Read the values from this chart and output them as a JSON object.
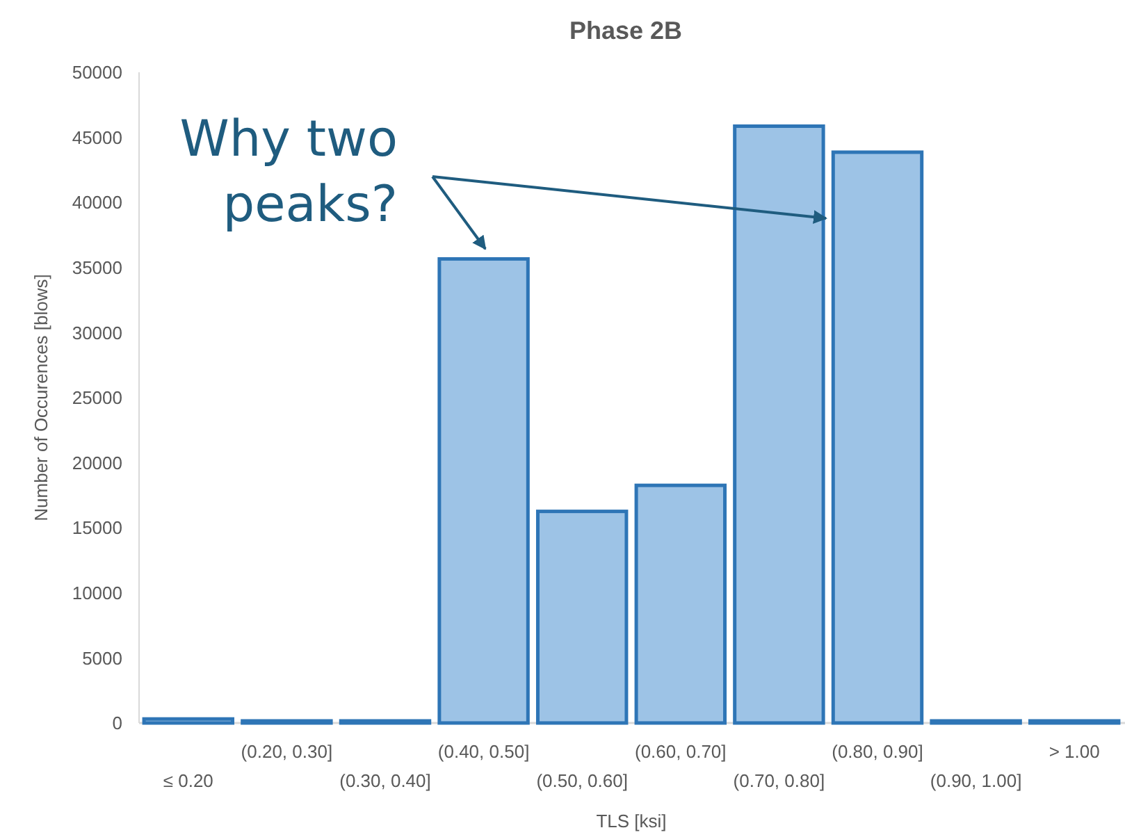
{
  "chart_data": {
    "type": "bar",
    "title": "Phase 2B",
    "xlabel": "TLS [ksi]",
    "ylabel": "Number of Occurences [blows]",
    "categories": [
      "≤ 0.20",
      "(0.20, 0.30]",
      "(0.30, 0.40]",
      "(0.40, 0.50]",
      "(0.50, 0.60]",
      "(0.60, 0.70]",
      "(0.70, 0.80]",
      "(0.80, 0.90]",
      "(0.90, 1.00]",
      "> 1.00"
    ],
    "values": [
      150,
      0,
      0,
      35500,
      16100,
      18100,
      45700,
      43700,
      0,
      0
    ],
    "color": "#9dc3e6",
    "ylim": [
      0,
      50000
    ],
    "yticks": [
      0,
      5000,
      10000,
      15000,
      20000,
      25000,
      30000,
      35000,
      40000,
      45000,
      50000
    ],
    "grid": false,
    "annotations": [
      "Why two peaks?"
    ]
  }
}
